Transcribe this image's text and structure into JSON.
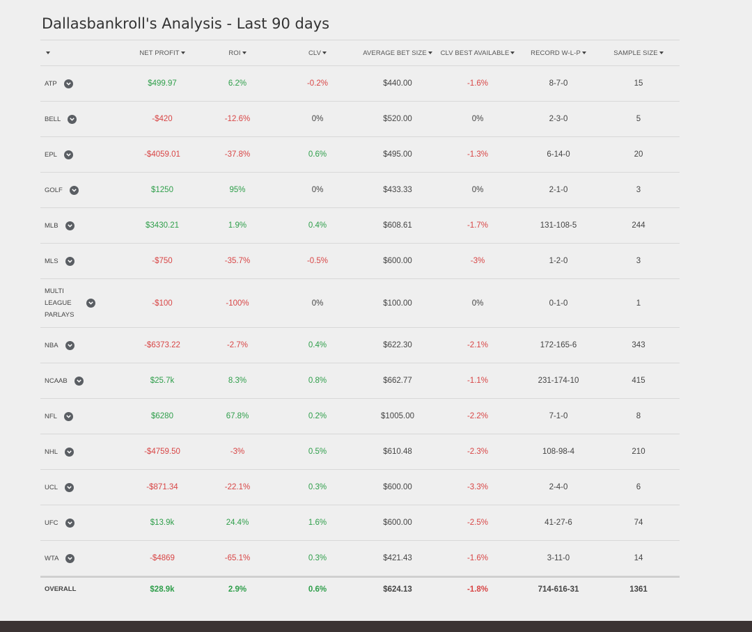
{
  "title": "Dallasbankroll's Analysis - Last 90 days",
  "colors": {
    "positive": "#2e9e4a",
    "negative": "#d84545"
  },
  "headers": [
    "NET PROFIT",
    "ROI",
    "CLV",
    "AVERAGE BET SIZE",
    "CLV BEST AVAILABLE",
    "RECORD W-L-P",
    "SAMPLE SIZE"
  ],
  "rows": [
    {
      "league": [
        "ATP"
      ],
      "net": "$499.97",
      "net_s": "pos",
      "roi": "6.2%",
      "roi_s": "pos",
      "clv": "-0.2%",
      "clv_s": "neg",
      "avg": "$440.00",
      "best": "-1.6%",
      "best_s": "neg",
      "record": "8-7-0",
      "sample": "15"
    },
    {
      "league": [
        "BELL"
      ],
      "net": "-$420",
      "net_s": "neg",
      "roi": "-12.6%",
      "roi_s": "neg",
      "clv": "0%",
      "clv_s": "",
      "avg": "$520.00",
      "best": "0%",
      "best_s": "",
      "record": "2-3-0",
      "sample": "5"
    },
    {
      "league": [
        "EPL"
      ],
      "net": "-$4059.01",
      "net_s": "neg",
      "roi": "-37.8%",
      "roi_s": "neg",
      "clv": "0.6%",
      "clv_s": "pos",
      "avg": "$495.00",
      "best": "-1.3%",
      "best_s": "neg",
      "record": "6-14-0",
      "sample": "20"
    },
    {
      "league": [
        "GOLF"
      ],
      "net": "$1250",
      "net_s": "pos",
      "roi": "95%",
      "roi_s": "pos",
      "clv": "0%",
      "clv_s": "",
      "avg": "$433.33",
      "best": "0%",
      "best_s": "",
      "record": "2-1-0",
      "sample": "3"
    },
    {
      "league": [
        "MLB"
      ],
      "net": "$3430.21",
      "net_s": "pos",
      "roi": "1.9%",
      "roi_s": "pos",
      "clv": "0.4%",
      "clv_s": "pos",
      "avg": "$608.61",
      "best": "-1.7%",
      "best_s": "neg",
      "record": "131-108-5",
      "sample": "244"
    },
    {
      "league": [
        "MLS"
      ],
      "net": "-$750",
      "net_s": "neg",
      "roi": "-35.7%",
      "roi_s": "neg",
      "clv": "-0.5%",
      "clv_s": "neg",
      "avg": "$600.00",
      "best": "-3%",
      "best_s": "neg",
      "record": "1-2-0",
      "sample": "3"
    },
    {
      "league": [
        "MULTI",
        "LEAGUE",
        "PARLAYS"
      ],
      "net": "-$100",
      "net_s": "neg",
      "roi": "-100%",
      "roi_s": "neg",
      "clv": "0%",
      "clv_s": "",
      "avg": "$100.00",
      "best": "0%",
      "best_s": "",
      "record": "0-1-0",
      "sample": "1"
    },
    {
      "league": [
        "NBA"
      ],
      "net": "-$6373.22",
      "net_s": "neg",
      "roi": "-2.7%",
      "roi_s": "neg",
      "clv": "0.4%",
      "clv_s": "pos",
      "avg": "$622.30",
      "best": "-2.1%",
      "best_s": "neg",
      "record": "172-165-6",
      "sample": "343"
    },
    {
      "league": [
        "NCAAB"
      ],
      "net": "$25.7k",
      "net_s": "pos",
      "roi": "8.3%",
      "roi_s": "pos",
      "clv": "0.8%",
      "clv_s": "pos",
      "avg": "$662.77",
      "best": "-1.1%",
      "best_s": "neg",
      "record": "231-174-10",
      "sample": "415"
    },
    {
      "league": [
        "NFL"
      ],
      "net": "$6280",
      "net_s": "pos",
      "roi": "67.8%",
      "roi_s": "pos",
      "clv": "0.2%",
      "clv_s": "pos",
      "avg": "$1005.00",
      "best": "-2.2%",
      "best_s": "neg",
      "record": "7-1-0",
      "sample": "8"
    },
    {
      "league": [
        "NHL"
      ],
      "net": "-$4759.50",
      "net_s": "neg",
      "roi": "-3%",
      "roi_s": "neg",
      "clv": "0.5%",
      "clv_s": "pos",
      "avg": "$610.48",
      "best": "-2.3%",
      "best_s": "neg",
      "record": "108-98-4",
      "sample": "210"
    },
    {
      "league": [
        "UCL"
      ],
      "net": "-$871.34",
      "net_s": "neg",
      "roi": "-22.1%",
      "roi_s": "neg",
      "clv": "0.3%",
      "clv_s": "pos",
      "avg": "$600.00",
      "best": "-3.3%",
      "best_s": "neg",
      "record": "2-4-0",
      "sample": "6"
    },
    {
      "league": [
        "UFC"
      ],
      "net": "$13.9k",
      "net_s": "pos",
      "roi": "24.4%",
      "roi_s": "pos",
      "clv": "1.6%",
      "clv_s": "pos",
      "avg": "$600.00",
      "best": "-2.5%",
      "best_s": "neg",
      "record": "41-27-6",
      "sample": "74"
    },
    {
      "league": [
        "WTA"
      ],
      "net": "-$4869",
      "net_s": "neg",
      "roi": "-65.1%",
      "roi_s": "neg",
      "clv": "0.3%",
      "clv_s": "pos",
      "avg": "$421.43",
      "best": "-1.6%",
      "best_s": "neg",
      "record": "3-11-0",
      "sample": "14"
    }
  ],
  "overall": {
    "league": "OVERALL",
    "net": "$28.9k",
    "net_s": "pos",
    "roi": "2.9%",
    "roi_s": "pos",
    "clv": "0.6%",
    "clv_s": "pos",
    "avg": "$624.13",
    "best": "-1.8%",
    "best_s": "neg",
    "record": "714-616-31",
    "sample": "1361"
  }
}
